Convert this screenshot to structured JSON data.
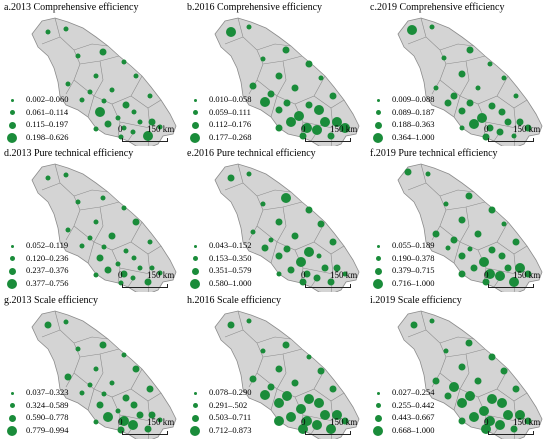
{
  "colors": {
    "province_fill": "#d4d4d4",
    "boundary": "#8c8c8c",
    "dot": "#1a8c3a"
  },
  "scale_bar": {
    "start": "0",
    "end": "150 km"
  },
  "panels": [
    {
      "title": "a.2013 Comprehensive efficiency",
      "legend": [
        "0.002–0.060",
        "0.061–0.114",
        "0.115–0.197",
        "0.198–0.626"
      ]
    },
    {
      "title": "b.2016 Comprehensive efficiency",
      "legend": [
        "0.010–0.058",
        "0.059–0.111",
        "0.112–0.176",
        "0.177–0.268"
      ]
    },
    {
      "title": "c.2019 Comprehensive efficiency",
      "legend": [
        "0.009–0.088",
        "0.089–0.187",
        "0.188–0.363",
        "0.364–1.000"
      ]
    },
    {
      "title": "d.2013 Pure technical efficiency",
      "legend": [
        "0.052–0.119",
        "0.120–0.236",
        "0.237–0.376",
        "0.377–0.756"
      ]
    },
    {
      "title": "e.2016 Pure technical efficiency",
      "legend": [
        "0.043–0.152",
        "0.153–0.350",
        "0.351–0.579",
        "0.580–1.000"
      ]
    },
    {
      "title": "f.2019 Pure technical efficiency",
      "legend": [
        "0.055–0.189",
        "0.190–0.378",
        "0.379–0.715",
        "0.716–1.000"
      ]
    },
    {
      "title": "g.2013 Scale efficiency",
      "legend": [
        "0.037–0.323",
        "0.324–0.589",
        "0.590–0.778",
        "0.779–0.994"
      ]
    },
    {
      "title": "h.2016 Scale efficiency",
      "legend": [
        "0.078–0.290",
        "0.291–.502",
        "0.503–0.711",
        "0.712–0.873"
      ]
    },
    {
      "title": "i.2019 Scale efficiency",
      "legend": [
        "0.027–0.254",
        "0.255–0.442",
        "0.443–0.667",
        "0.668–1.000"
      ]
    }
  ]
}
